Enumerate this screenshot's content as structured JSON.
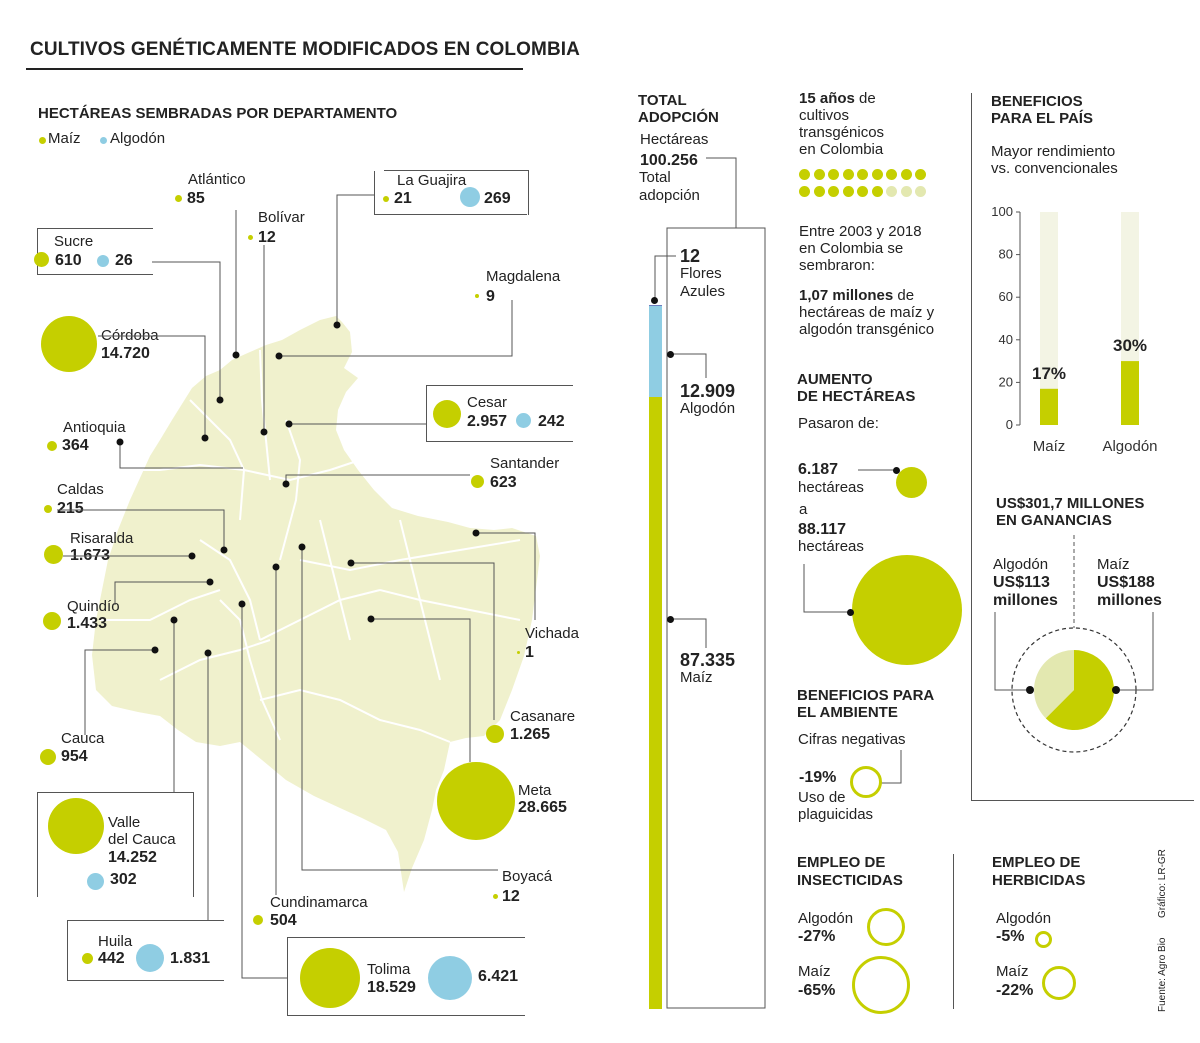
{
  "title": "CULTIVOS GENÉTICAMENTE MODIFICADOS EN COLOMBIA",
  "colors": {
    "maiz": "#c5cf00",
    "algodon": "#8fcde3",
    "map": "#f0f1cd",
    "light": "#e3e8b0",
    "track": "#f3f4e4",
    "line": "#555555"
  },
  "map_section": {
    "title": "HECTÁREAS SEMBRADAS POR DEPARTAMENTO",
    "legend": {
      "maiz": "Maíz",
      "algodon": "Algodón"
    }
  },
  "departments": {
    "atlantico": {
      "name": "Atlántico",
      "maiz": "85"
    },
    "bolivar": {
      "name": "Bolívar",
      "maiz": "12"
    },
    "guajira": {
      "name": "La Guajira",
      "maiz": "21",
      "algodon": "269"
    },
    "sucre": {
      "name": "Sucre",
      "maiz": "610",
      "algodon": "26"
    },
    "magdalena": {
      "name": "Magdalena",
      "maiz": "9"
    },
    "cordoba": {
      "name": "Córdoba",
      "maiz": "14.720"
    },
    "cesar": {
      "name": "Cesar",
      "maiz": "2.957",
      "algodon": "242"
    },
    "antioquia": {
      "name": "Antioquia",
      "maiz": "364"
    },
    "santander": {
      "name": "Santander",
      "maiz": "623"
    },
    "caldas": {
      "name": "Caldas",
      "maiz": "215"
    },
    "risaralda": {
      "name": "Risaralda",
      "maiz": "1.673"
    },
    "quindio": {
      "name": "Quindío",
      "maiz": "1.433"
    },
    "vichada": {
      "name": "Vichada",
      "maiz": "1"
    },
    "casanare": {
      "name": "Casanare",
      "maiz": "1.265"
    },
    "cauca": {
      "name": "Cauca",
      "maiz": "954"
    },
    "meta": {
      "name": "Meta",
      "maiz": "28.665"
    },
    "valle": {
      "name1": "Valle",
      "name2": "del Cauca",
      "maiz": "14.252",
      "algodon": "302"
    },
    "boyaca": {
      "name": "Boyacá",
      "maiz": "12"
    },
    "cundinamarca": {
      "name": "Cundinamarca",
      "maiz": "504"
    },
    "huila": {
      "name": "Huila",
      "maiz": "442",
      "algodon": "1.831"
    },
    "tolima": {
      "name": "Tolima",
      "maiz": "18.529",
      "algodon": "6.421"
    }
  },
  "total": {
    "title1": "TOTAL",
    "title2": "ADOPCIÓN",
    "unit": "Hectáreas",
    "value": "100.256",
    "caption1": "Total",
    "caption2": "adopción",
    "flores_value": "12",
    "flores_l1": "Flores",
    "flores_l2": "Azules",
    "algodon_value": "12.909",
    "algodon_label": "Algodón",
    "maiz_value": "87.335",
    "maiz_label": "Maíz"
  },
  "total_bar": {
    "total": 100256,
    "segments": [
      {
        "name": "Flores Azules",
        "value": 12
      },
      {
        "name": "Algodón",
        "value": 12909
      },
      {
        "name": "Maíz",
        "value": 87335
      }
    ]
  },
  "years": {
    "bold": "15 años",
    "l1": "de",
    "l2": "cultivos",
    "l3": "transgénicos",
    "l4": "en Colombia",
    "count_filled": 15,
    "count_total": 18
  },
  "period": {
    "l1": "Entre 2003 y 2018",
    "l2": "en Colombia se",
    "l3": "sembraron:",
    "bold": "1,07 millones",
    "l4": "de",
    "l5": "hectáreas de maíz y",
    "l6": "algodón transgénico"
  },
  "aumento": {
    "title1": "AUMENTO",
    "title2": "DE HECTÁREAS",
    "sub": "Pasaron de:",
    "from_value": "6.187",
    "from_unit": "hectáreas",
    "to_prefix": "a",
    "to_value": "88.117",
    "to_unit": "hectáreas"
  },
  "ambiente": {
    "title1": "BENEFICIOS PARA",
    "title2": "EL AMBIENTE",
    "sub": "Cifras negativas",
    "value": "-19%",
    "l1": "Uso de",
    "l2": "plaguicidas"
  },
  "insecticidas": {
    "title1": "EMPLEO DE",
    "title2": "INSECTICIDAS",
    "a_label": "Algodón",
    "a_value": "-27%",
    "m_label": "Maíz",
    "m_value": "-65%"
  },
  "herbicidas": {
    "title1": "EMPLEO DE",
    "title2": "HERBICIDAS",
    "a_label": "Algodón",
    "a_value": "-5%",
    "m_label": "Maíz",
    "m_value": "-22%"
  },
  "beneficios": {
    "title1": "BENEFICIOS",
    "title2": "PARA EL PAÍS",
    "sub1": "Mayor rendimiento",
    "sub2": "vs. convencionales"
  },
  "chart_data": [
    {
      "type": "bar",
      "categories": [
        "Maíz",
        "Algodón"
      ],
      "values": [
        17,
        30
      ],
      "labels": [
        "17%",
        "30%"
      ],
      "ylim": [
        0,
        100
      ],
      "yticks": [
        0,
        20,
        40,
        60,
        80,
        100
      ],
      "title": "",
      "xlabel": "",
      "ylabel": ""
    },
    {
      "type": "pie",
      "title": "US$301,7 MILLONES EN GANANCIAS",
      "slices": [
        {
          "name": "Algodón",
          "value": 113,
          "label1": "Algodón",
          "label2": "US$113",
          "label3": "millones"
        },
        {
          "name": "Maíz",
          "value": 188,
          "label1": "Maíz",
          "label2": "US$188",
          "label3": "millones"
        }
      ]
    }
  ],
  "ganancias": {
    "title1": "US$301,7 MILLONES",
    "title2": "EN GANANCIAS"
  },
  "credits": {
    "grafico": "Gráfico: LR-GR",
    "fuente": "Fuente: Agro Bio"
  }
}
